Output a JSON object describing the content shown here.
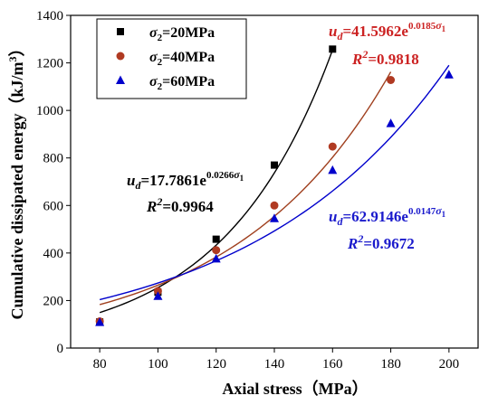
{
  "chart_data": {
    "type": "scatter",
    "xlabel": "Axial stress（MPa）",
    "ylabel": "Cumulative dissipated energy（kJ/m³）",
    "xlim": [
      70,
      210
    ],
    "ylim": [
      0,
      1400
    ],
    "xticks": [
      80,
      100,
      120,
      140,
      160,
      180,
      200
    ],
    "yticks": [
      0,
      200,
      400,
      600,
      800,
      1000,
      1200,
      1400
    ],
    "legend_position": "top-left",
    "series": [
      {
        "name": "σ₂=20MPa",
        "marker": "square",
        "color": "#000000",
        "x": [
          80,
          100,
          120,
          140,
          160
        ],
        "y": [
          110,
          235,
          458,
          770,
          1258
        ],
        "fit": {
          "a": 17.7861,
          "b": 0.0266,
          "x_range": [
            80,
            160
          ]
        },
        "equation": {
          "prefix": "=17.7861e",
          "exponent": "0.0266",
          "r2": "=0.9964"
        }
      },
      {
        "name": "σ₂=40MPa",
        "marker": "circle",
        "color": "#a0401f",
        "x": [
          80,
          100,
          120,
          140,
          160,
          180
        ],
        "y": [
          112,
          240,
          412,
          600,
          848,
          1128
        ],
        "fit": {
          "a": 41.5962,
          "b": 0.0185,
          "x_range": [
            80,
            180
          ]
        },
        "equation": {
          "prefix": "=41.5962e",
          "exponent": "0.0185",
          "r2": "=0.9818"
        }
      },
      {
        "name": "σ₂=60MPa",
        "marker": "triangle",
        "color": "#0000cc",
        "x": [
          80,
          100,
          120,
          140,
          160,
          180,
          200
        ],
        "y": [
          108,
          218,
          375,
          545,
          748,
          945,
          1150
        ],
        "fit": {
          "a": 62.9146,
          "b": 0.0147,
          "x_range": [
            80,
            200
          ]
        },
        "equation": {
          "prefix": "=62.9146e",
          "exponent": "0.0147",
          "r2": "=0.9672"
        }
      }
    ],
    "equation_symbol": "u",
    "equation_subscript": "d",
    "exponent_variable": "σ",
    "exponent_variable_sub": "1",
    "r2_symbol": "R",
    "r2_exponent": "2",
    "legend_symbol": "σ",
    "legend_values": [
      "=20MPa",
      "=40MPa",
      "=60MPa"
    ],
    "legend_subscript": "2",
    "ylabel_text": "Cumulative dissipated energy（kJ/m",
    "ylabel_sup": "3",
    "ylabel_end": "）"
  }
}
